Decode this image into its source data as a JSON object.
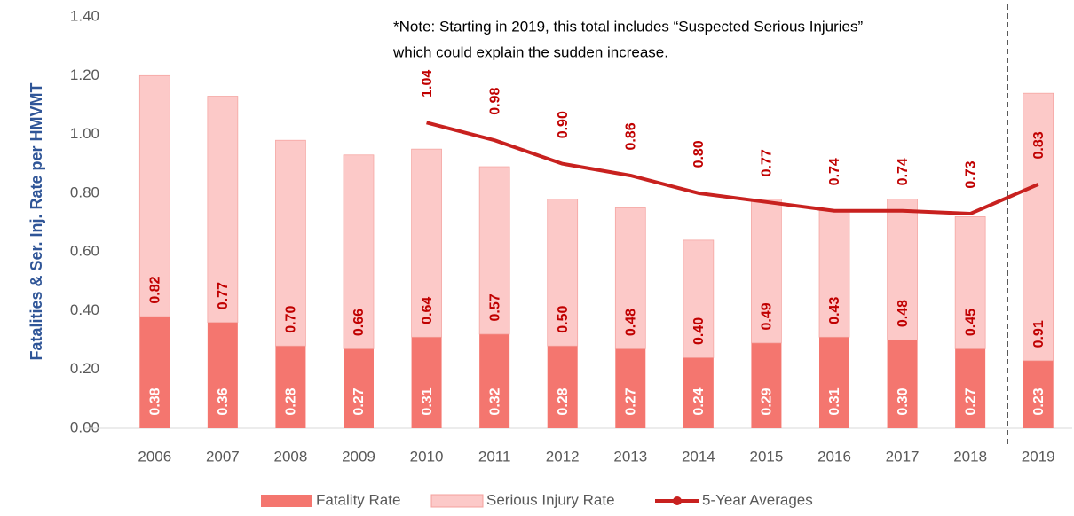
{
  "chart_data": {
    "type": "bar",
    "stacked": true,
    "y_axis_label": "Fatalities & Ser. Inj. Rate per HMVMT",
    "annotation": [
      "*Note: Starting in 2019, this total includes “Suspected Serious Injuries”",
      "which could explain the sudden increase."
    ],
    "categories": [
      "2006",
      "2007",
      "2008",
      "2009",
      "2010",
      "2011",
      "2012",
      "2013",
      "2014",
      "2015",
      "2016",
      "2017",
      "2018",
      "2019"
    ],
    "series": [
      {
        "name": "Fatality Rate",
        "type": "bar",
        "color": "#f4766f",
        "values": [
          0.38,
          0.36,
          0.28,
          0.27,
          0.31,
          0.32,
          0.28,
          0.27,
          0.24,
          0.29,
          0.31,
          0.3,
          0.27,
          0.23
        ],
        "value_labels": [
          "0.38",
          "0.36",
          "0.28",
          "0.27",
          "0.31",
          "0.32",
          "0.28",
          "0.27",
          "0.24",
          "0.29",
          "0.31",
          "0.30",
          "0.27",
          "0.23"
        ]
      },
      {
        "name": "Serious Injury Rate",
        "type": "bar",
        "color": "#fcc9c8",
        "values": [
          0.82,
          0.77,
          0.7,
          0.66,
          0.64,
          0.57,
          0.5,
          0.48,
          0.4,
          0.49,
          0.43,
          0.48,
          0.45,
          0.91
        ],
        "value_labels": [
          "0.82",
          "0.77",
          "0.70",
          "0.66",
          "0.64",
          "0.57",
          "0.50",
          "0.48",
          "0.40",
          "0.49",
          "0.43",
          "0.48",
          "0.45",
          "0.91"
        ]
      },
      {
        "name": "5-Year Averages",
        "type": "line",
        "color": "#c8211f",
        "values": [
          null,
          null,
          null,
          null,
          1.04,
          0.98,
          0.9,
          0.86,
          0.8,
          0.77,
          0.74,
          0.74,
          0.73,
          0.83
        ],
        "value_labels": [
          null,
          null,
          null,
          null,
          "1.04",
          "0.98",
          "0.90",
          "0.86",
          "0.80",
          "0.77",
          "0.74",
          "0.74",
          "0.73",
          "0.83"
        ]
      }
    ],
    "ylim": [
      0,
      1.4
    ],
    "yticks": [
      {
        "value": 0,
        "label": "0.00"
      },
      {
        "value": 0.2,
        "label": "0.20"
      },
      {
        "value": 0.4,
        "label": "0.40"
      },
      {
        "value": 0.6,
        "label": "0.60"
      },
      {
        "value": 0.8,
        "label": "0.80"
      },
      {
        "value": 1,
        "label": "1.00"
      },
      {
        "value": 1.2,
        "label": "1.20"
      },
      {
        "value": 1.4,
        "label": "1.40"
      }
    ],
    "grid": false,
    "legend": "bottom"
  }
}
